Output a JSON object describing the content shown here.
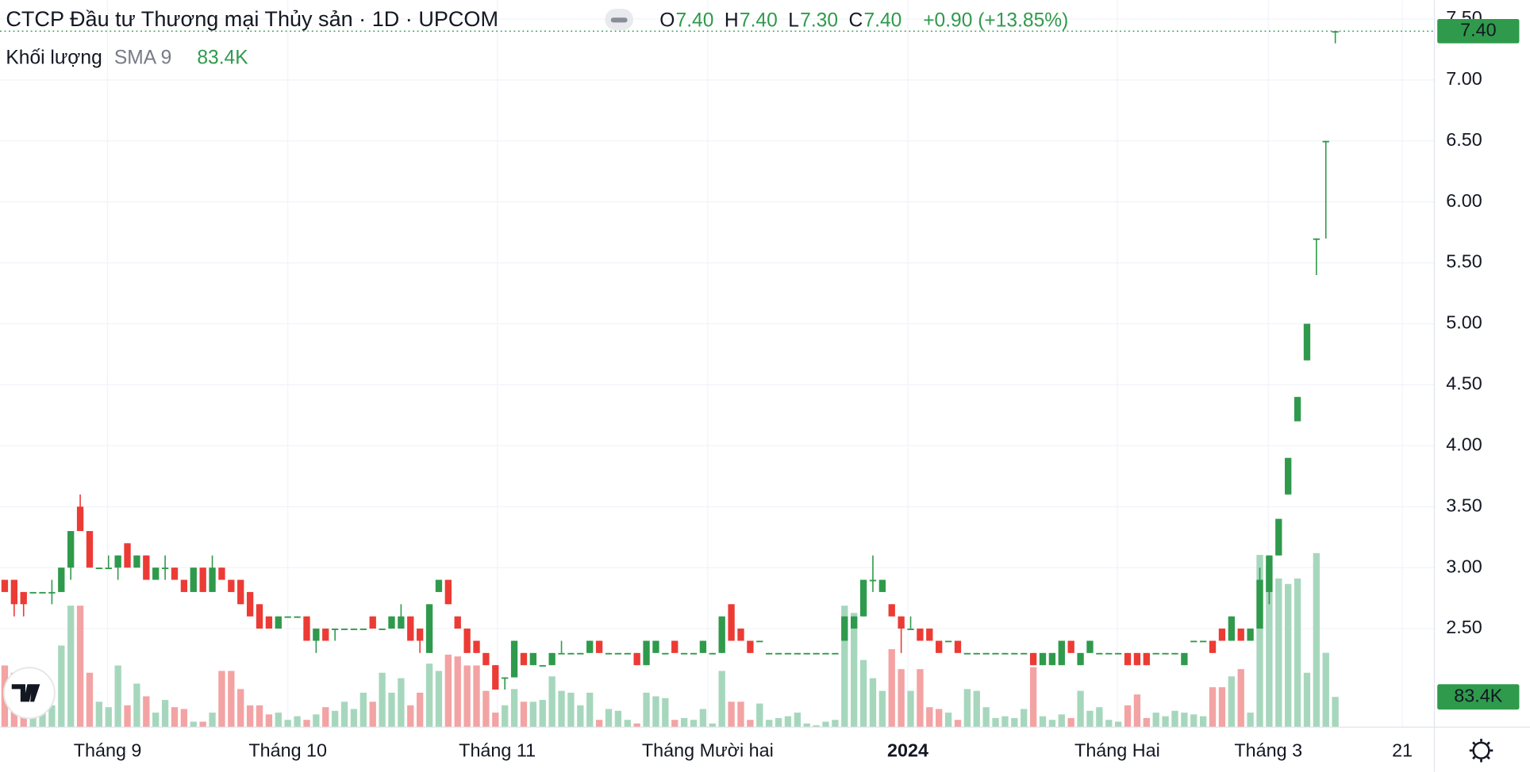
{
  "chart_data": {
    "type": "candlestick",
    "title": "CTCP Đầu tư Thương mại Thủy sản · 1D · UPCOM",
    "ohlc": [
      {
        "name": "O",
        "value": 7.4,
        "label": "7.40"
      },
      {
        "name": "H",
        "value": 7.4,
        "label": "7.40"
      },
      {
        "name": "L",
        "value": 7.3,
        "label": "7.30"
      },
      {
        "name": "C",
        "value": 7.4,
        "label": "7.40"
      }
    ],
    "change_label": "+0.90 (+13.85%)",
    "volume_legend": {
      "name": "Khối lượng",
      "indicator": "SMA 9",
      "value": 83.4,
      "label": "83.4K"
    },
    "up_color": "#2f9a4c",
    "down_color": "#ec3b35",
    "volume_up_color": "#a6d7bd",
    "volume_down_color": "#f3a3a3",
    "grid": true,
    "xlim": [
      -0.5,
      151.5
    ],
    "xticks": [
      {
        "value": 10.9,
        "label": "Tháng 9"
      },
      {
        "value": 30,
        "label": "Tháng 10"
      },
      {
        "value": 52.2,
        "label": "Tháng 11"
      },
      {
        "value": 74.5,
        "label": "Tháng Mười hai"
      },
      {
        "value": 95.7,
        "label": "2024"
      },
      {
        "value": 117.9,
        "label": "Tháng Hai"
      },
      {
        "value": 133.9,
        "label": "Tháng 3"
      },
      {
        "value": 148.1,
        "label": "21"
      }
    ],
    "ylim": [
      1.692,
      7.655
    ],
    "yticks": [
      {
        "value": 2.5,
        "label": "2.50"
      },
      {
        "value": 3,
        "label": "3.00"
      },
      {
        "value": 3.5,
        "label": "3.50"
      },
      {
        "value": 4,
        "label": "4.00"
      },
      {
        "value": 4.5,
        "label": "4.50"
      },
      {
        "value": 5,
        "label": "5.00"
      },
      {
        "value": 5.5,
        "label": "5.50"
      },
      {
        "value": 6,
        "label": "6.00"
      },
      {
        "value": 6.5,
        "label": "6.50"
      },
      {
        "value": 7,
        "label": "7.00"
      },
      {
        "value": 7.5,
        "label": "7.50"
      }
    ],
    "volume_lim": [
      0,
      620
    ],
    "open": [
      2.9,
      2.9,
      2.8,
      2.8,
      2.8,
      2.8,
      2.8,
      3.0,
      3.5,
      3.3,
      3.0,
      3.0,
      3.0,
      3.2,
      3.0,
      3.1,
      2.9,
      3.0,
      3.0,
      2.9,
      2.8,
      3.0,
      2.8,
      3.0,
      2.9,
      2.9,
      2.8,
      2.7,
      2.6,
      2.5,
      2.6,
      2.6,
      2.6,
      2.4,
      2.5,
      2.5,
      2.5,
      2.5,
      2.5,
      2.6,
      2.5,
      2.5,
      2.5,
      2.6,
      2.5,
      2.3,
      2.8,
      2.9,
      2.6,
      2.5,
      2.4,
      2.3,
      2.2,
      2.1,
      2.1,
      2.3,
      2.2,
      2.2,
      2.2,
      2.3,
      2.3,
      2.3,
      2.3,
      2.4,
      2.3,
      2.3,
      2.3,
      2.3,
      2.2,
      2.3,
      2.3,
      2.4,
      2.3,
      2.3,
      2.3,
      2.3,
      2.3,
      2.7,
      2.5,
      2.4,
      2.4,
      2.3,
      2.3,
      2.3,
      2.3,
      2.3,
      2.3,
      2.3,
      2.3,
      2.4,
      2.5,
      2.6,
      2.9,
      2.8,
      2.7,
      2.6,
      2.5,
      2.5,
      2.5,
      2.4,
      2.4,
      2.4,
      2.3,
      2.3,
      2.3,
      2.3,
      2.3,
      2.3,
      2.3,
      2.3,
      2.2,
      2.2,
      2.2,
      2.4,
      2.2,
      2.3,
      2.3,
      2.3,
      2.3,
      2.3,
      2.3,
      2.3,
      2.3,
      2.3,
      2.3,
      2.2,
      2.4,
      2.4,
      2.4,
      2.5,
      2.4,
      2.5,
      2.4,
      2.5,
      2.8,
      3.1,
      3.6,
      4.2,
      4.7,
      5.7,
      6.5,
      7.4
    ],
    "high": [
      2.9,
      2.9,
      2.8,
      2.8,
      2.8,
      2.9,
      3.0,
      3.3,
      3.6,
      3.3,
      3.0,
      3.1,
      3.1,
      3.2,
      3.1,
      3.1,
      3.0,
      3.1,
      3.0,
      2.9,
      3.0,
      3.0,
      3.1,
      3.0,
      2.9,
      2.9,
      2.8,
      2.7,
      2.6,
      2.6,
      2.6,
      2.6,
      2.6,
      2.5,
      2.5,
      2.5,
      2.5,
      2.5,
      2.5,
      2.6,
      2.5,
      2.6,
      2.7,
      2.6,
      2.5,
      2.7,
      2.9,
      2.9,
      2.6,
      2.5,
      2.4,
      2.3,
      2.2,
      2.1,
      2.4,
      2.3,
      2.3,
      2.2,
      2.3,
      2.4,
      2.3,
      2.3,
      2.4,
      2.4,
      2.3,
      2.3,
      2.3,
      2.3,
      2.4,
      2.4,
      2.3,
      2.4,
      2.3,
      2.3,
      2.4,
      2.3,
      2.6,
      2.7,
      2.5,
      2.4,
      2.4,
      2.3,
      2.3,
      2.3,
      2.3,
      2.3,
      2.3,
      2.3,
      2.3,
      2.6,
      2.6,
      2.9,
      3.1,
      2.9,
      2.7,
      2.6,
      2.6,
      2.5,
      2.5,
      2.4,
      2.4,
      2.4,
      2.3,
      2.3,
      2.3,
      2.3,
      2.3,
      2.3,
      2.3,
      2.3,
      2.3,
      2.3,
      2.4,
      2.4,
      2.3,
      2.4,
      2.3,
      2.3,
      2.3,
      2.3,
      2.3,
      2.3,
      2.3,
      2.3,
      2.3,
      2.3,
      2.4,
      2.4,
      2.4,
      2.5,
      2.6,
      2.5,
      2.5,
      3.0,
      3.1,
      3.4,
      3.9,
      4.4,
      5.0,
      5.7,
      6.5,
      7.4
    ],
    "low": [
      2.8,
      2.6,
      2.6,
      2.8,
      2.8,
      2.7,
      2.8,
      2.9,
      3.3,
      3.0,
      3.0,
      3.0,
      2.9,
      3.0,
      3.0,
      2.9,
      2.9,
      2.9,
      2.9,
      2.8,
      2.8,
      2.8,
      2.8,
      2.9,
      2.8,
      2.7,
      2.6,
      2.5,
      2.5,
      2.5,
      2.6,
      2.6,
      2.4,
      2.3,
      2.4,
      2.4,
      2.5,
      2.5,
      2.5,
      2.5,
      2.5,
      2.5,
      2.5,
      2.4,
      2.3,
      2.3,
      2.8,
      2.7,
      2.5,
      2.3,
      2.3,
      2.2,
      2.0,
      2.0,
      2.1,
      2.2,
      2.2,
      2.2,
      2.2,
      2.3,
      2.3,
      2.3,
      2.3,
      2.3,
      2.3,
      2.3,
      2.3,
      2.2,
      2.2,
      2.3,
      2.3,
      2.3,
      2.3,
      2.3,
      2.3,
      2.3,
      2.3,
      2.4,
      2.4,
      2.3,
      2.4,
      2.3,
      2.3,
      2.3,
      2.3,
      2.3,
      2.3,
      2.3,
      2.3,
      2.4,
      2.5,
      2.6,
      2.8,
      2.8,
      2.6,
      2.3,
      2.5,
      2.4,
      2.4,
      2.3,
      2.4,
      2.3,
      2.3,
      2.3,
      2.3,
      2.3,
      2.3,
      2.3,
      2.3,
      2.2,
      2.2,
      2.2,
      2.2,
      2.3,
      2.2,
      2.3,
      2.3,
      2.3,
      2.3,
      2.2,
      2.2,
      2.2,
      2.3,
      2.3,
      2.3,
      2.2,
      2.4,
      2.4,
      2.3,
      2.4,
      2.4,
      2.4,
      2.4,
      2.5,
      2.7,
      3.1,
      3.6,
      4.2,
      4.7,
      5.4,
      5.7,
      7.3
    ],
    "close": [
      2.8,
      2.7,
      2.7,
      2.8,
      2.8,
      2.8,
      3.0,
      3.3,
      3.3,
      3.0,
      3.0,
      3.0,
      3.1,
      3.0,
      3.1,
      2.9,
      3.0,
      3.0,
      2.9,
      2.8,
      3.0,
      2.8,
      3.0,
      2.9,
      2.8,
      2.7,
      2.6,
      2.5,
      2.5,
      2.6,
      2.6,
      2.6,
      2.4,
      2.5,
      2.4,
      2.5,
      2.5,
      2.5,
      2.5,
      2.5,
      2.5,
      2.6,
      2.6,
      2.4,
      2.4,
      2.7,
      2.9,
      2.7,
      2.5,
      2.3,
      2.3,
      2.2,
      2.0,
      2.1,
      2.4,
      2.2,
      2.3,
      2.2,
      2.3,
      2.3,
      2.3,
      2.3,
      2.4,
      2.3,
      2.3,
      2.3,
      2.3,
      2.2,
      2.4,
      2.4,
      2.3,
      2.3,
      2.3,
      2.3,
      2.4,
      2.3,
      2.6,
      2.4,
      2.4,
      2.3,
      2.4,
      2.3,
      2.3,
      2.3,
      2.3,
      2.3,
      2.3,
      2.3,
      2.3,
      2.6,
      2.6,
      2.9,
      2.9,
      2.9,
      2.6,
      2.5,
      2.5,
      2.4,
      2.4,
      2.3,
      2.4,
      2.3,
      2.3,
      2.3,
      2.3,
      2.3,
      2.3,
      2.3,
      2.3,
      2.2,
      2.3,
      2.3,
      2.4,
      2.3,
      2.3,
      2.4,
      2.3,
      2.3,
      2.3,
      2.2,
      2.2,
      2.2,
      2.3,
      2.3,
      2.3,
      2.3,
      2.4,
      2.4,
      2.3,
      2.4,
      2.6,
      2.4,
      2.5,
      2.9,
      3.1,
      3.4,
      3.9,
      4.4,
      5.0,
      5.7,
      6.5,
      7.4
    ],
    "volume": [
      170,
      150,
      60,
      40,
      50,
      60,
      225,
      335,
      335,
      150,
      70,
      55,
      170,
      60,
      120,
      85,
      40,
      75,
      55,
      50,
      15,
      15,
      40,
      155,
      155,
      105,
      60,
      60,
      35,
      40,
      20,
      30,
      20,
      35,
      55,
      45,
      70,
      50,
      95,
      70,
      150,
      95,
      135,
      60,
      95,
      175,
      155,
      200,
      195,
      170,
      170,
      100,
      40,
      60,
      105,
      70,
      70,
      75,
      140,
      100,
      95,
      60,
      95,
      20,
      50,
      45,
      20,
      10,
      95,
      85,
      80,
      20,
      25,
      20,
      50,
      10,
      155,
      70,
      70,
      20,
      65,
      20,
      25,
      30,
      40,
      10,
      5,
      15,
      20,
      335,
      315,
      185,
      135,
      100,
      215,
      160,
      100,
      160,
      55,
      50,
      40,
      20,
      105,
      100,
      55,
      25,
      30,
      25,
      50,
      165,
      30,
      20,
      35,
      25,
      100,
      45,
      55,
      20,
      15,
      60,
      90,
      25,
      40,
      30,
      45,
      40,
      35,
      30,
      110,
      110,
      140,
      160,
      40,
      475,
      445,
      410,
      395,
      410,
      150,
      480,
      205,
      83.4
    ]
  }
}
